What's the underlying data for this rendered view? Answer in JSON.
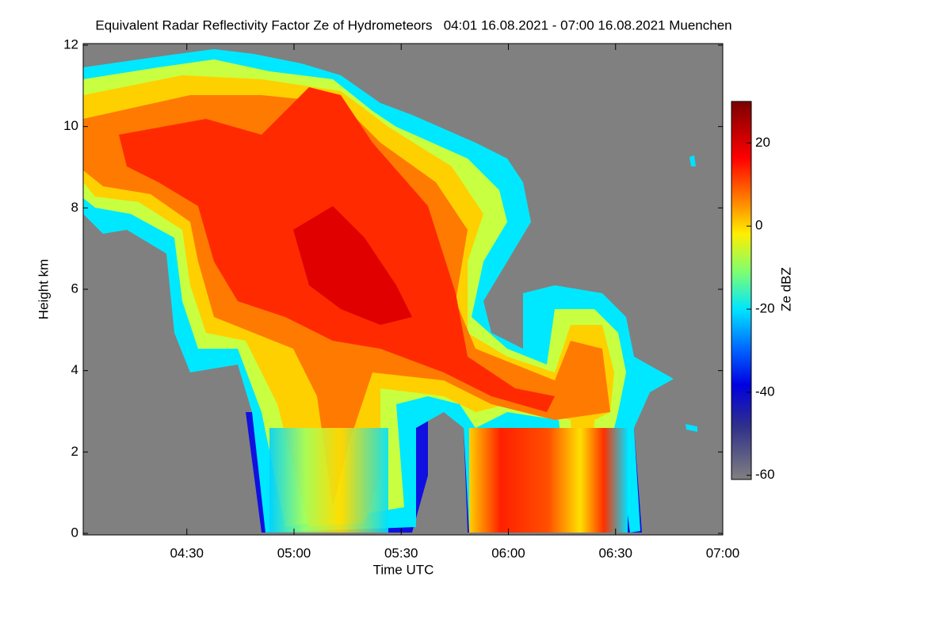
{
  "chart_data": {
    "type": "heatmap",
    "title": "Equivalent Radar Reflectivity Factor Ze of Hydrometeors   04:01 16.08.2021 - 07:00 16.08.2021 Muenchen",
    "x_label": "Time UTC",
    "y_label": "Height km",
    "xlim": [
      241,
      420
    ],
    "xticks": [
      {
        "value": 270,
        "label": "04:30"
      },
      {
        "value": 300,
        "label": "05:00"
      },
      {
        "value": 330,
        "label": "05:30"
      },
      {
        "value": 360,
        "label": "06:00"
      },
      {
        "value": 390,
        "label": "06:30"
      },
      {
        "value": 420,
        "label": "07:00"
      }
    ],
    "ylim": [
      0,
      12
    ],
    "yticks": [
      0,
      2,
      4,
      6,
      8,
      10,
      12
    ],
    "colorbar": {
      "label": "Ze dBZ",
      "lim": [
        -61,
        30
      ],
      "ticks": [
        20,
        0,
        -20,
        -40,
        -60
      ]
    }
  }
}
